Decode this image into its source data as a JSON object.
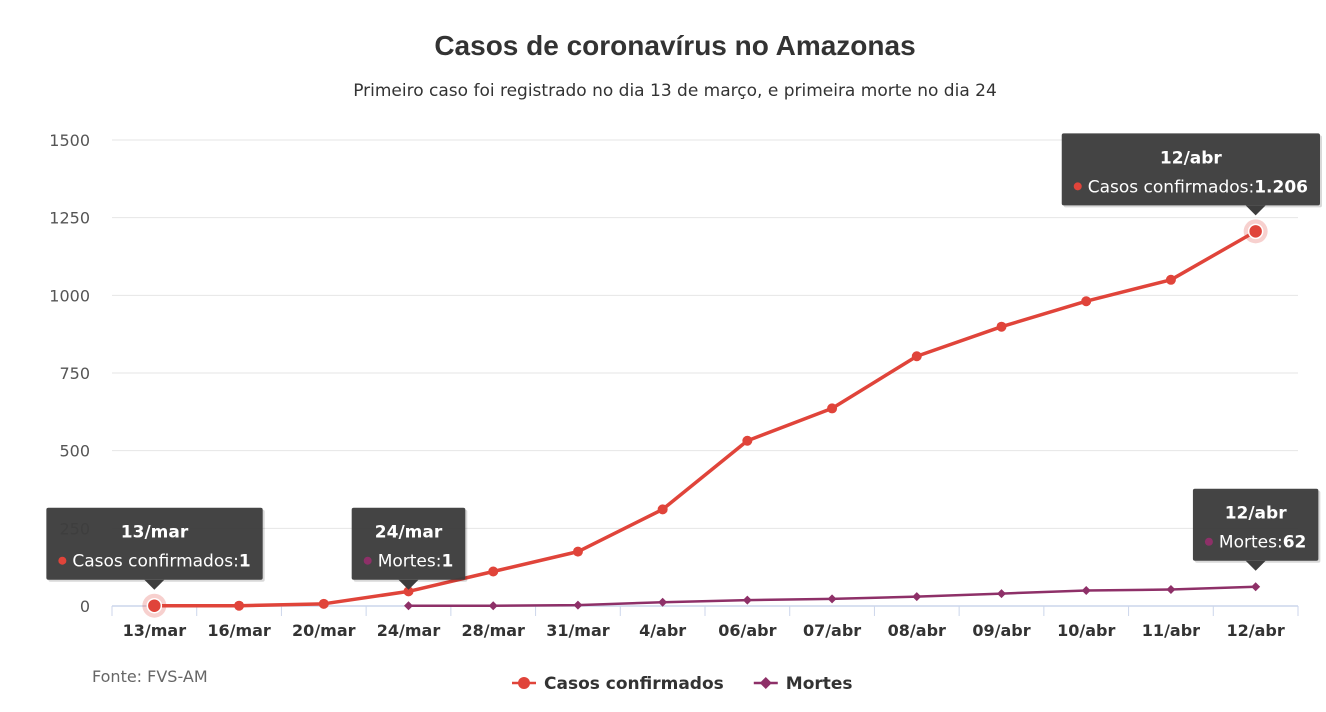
{
  "chart_data": {
    "type": "line",
    "title": "Casos de coronavírus no Amazonas",
    "subtitle": "Primeiro caso foi registrado no dia 13 de março, e primeira morte no dia 24",
    "source": "Fonte: FVS-AM",
    "xlabel": "",
    "ylabel": "",
    "categories": [
      "13/mar",
      "16/mar",
      "20/mar",
      "24/mar",
      "28/mar",
      "31/mar",
      "4/abr",
      "06/abr",
      "07/abr",
      "08/abr",
      "09/abr",
      "10/abr",
      "11/abr",
      "12/abr"
    ],
    "ylim": [
      0,
      1500
    ],
    "yticks": [
      "0",
      "250",
      "500",
      "750",
      "1000",
      "1250",
      "1500"
    ],
    "grid": true,
    "legend_position": "bottom-center",
    "series": [
      {
        "name": "Casos confirmados",
        "color": "#e0443a",
        "marker": "circle",
        "values": [
          1,
          1,
          7,
          47,
          111,
          175,
          311,
          532,
          636,
          804,
          899,
          981,
          1050,
          1206
        ]
      },
      {
        "name": "Mortes",
        "color": "#8e3068",
        "marker": "diamond",
        "values": [
          null,
          null,
          null,
          1,
          1,
          3,
          12,
          19,
          23,
          30,
          40,
          50,
          53,
          62
        ]
      }
    ],
    "tooltips": [
      {
        "date": "13/mar",
        "label": "Casos confirmados",
        "value": "1",
        "series": 0,
        "index": 0,
        "placement": "left-below"
      },
      {
        "date": "24/mar",
        "label": "Mortes",
        "value": "1",
        "series": 1,
        "index": 3,
        "placement": "above"
      },
      {
        "date": "12/abr",
        "label": "Casos confirmados",
        "value": "1.206",
        "series": 0,
        "index": 13,
        "placement": "above"
      },
      {
        "date": "12/abr",
        "label": "Mortes",
        "value": "62",
        "series": 1,
        "index": 13,
        "placement": "above"
      }
    ]
  }
}
